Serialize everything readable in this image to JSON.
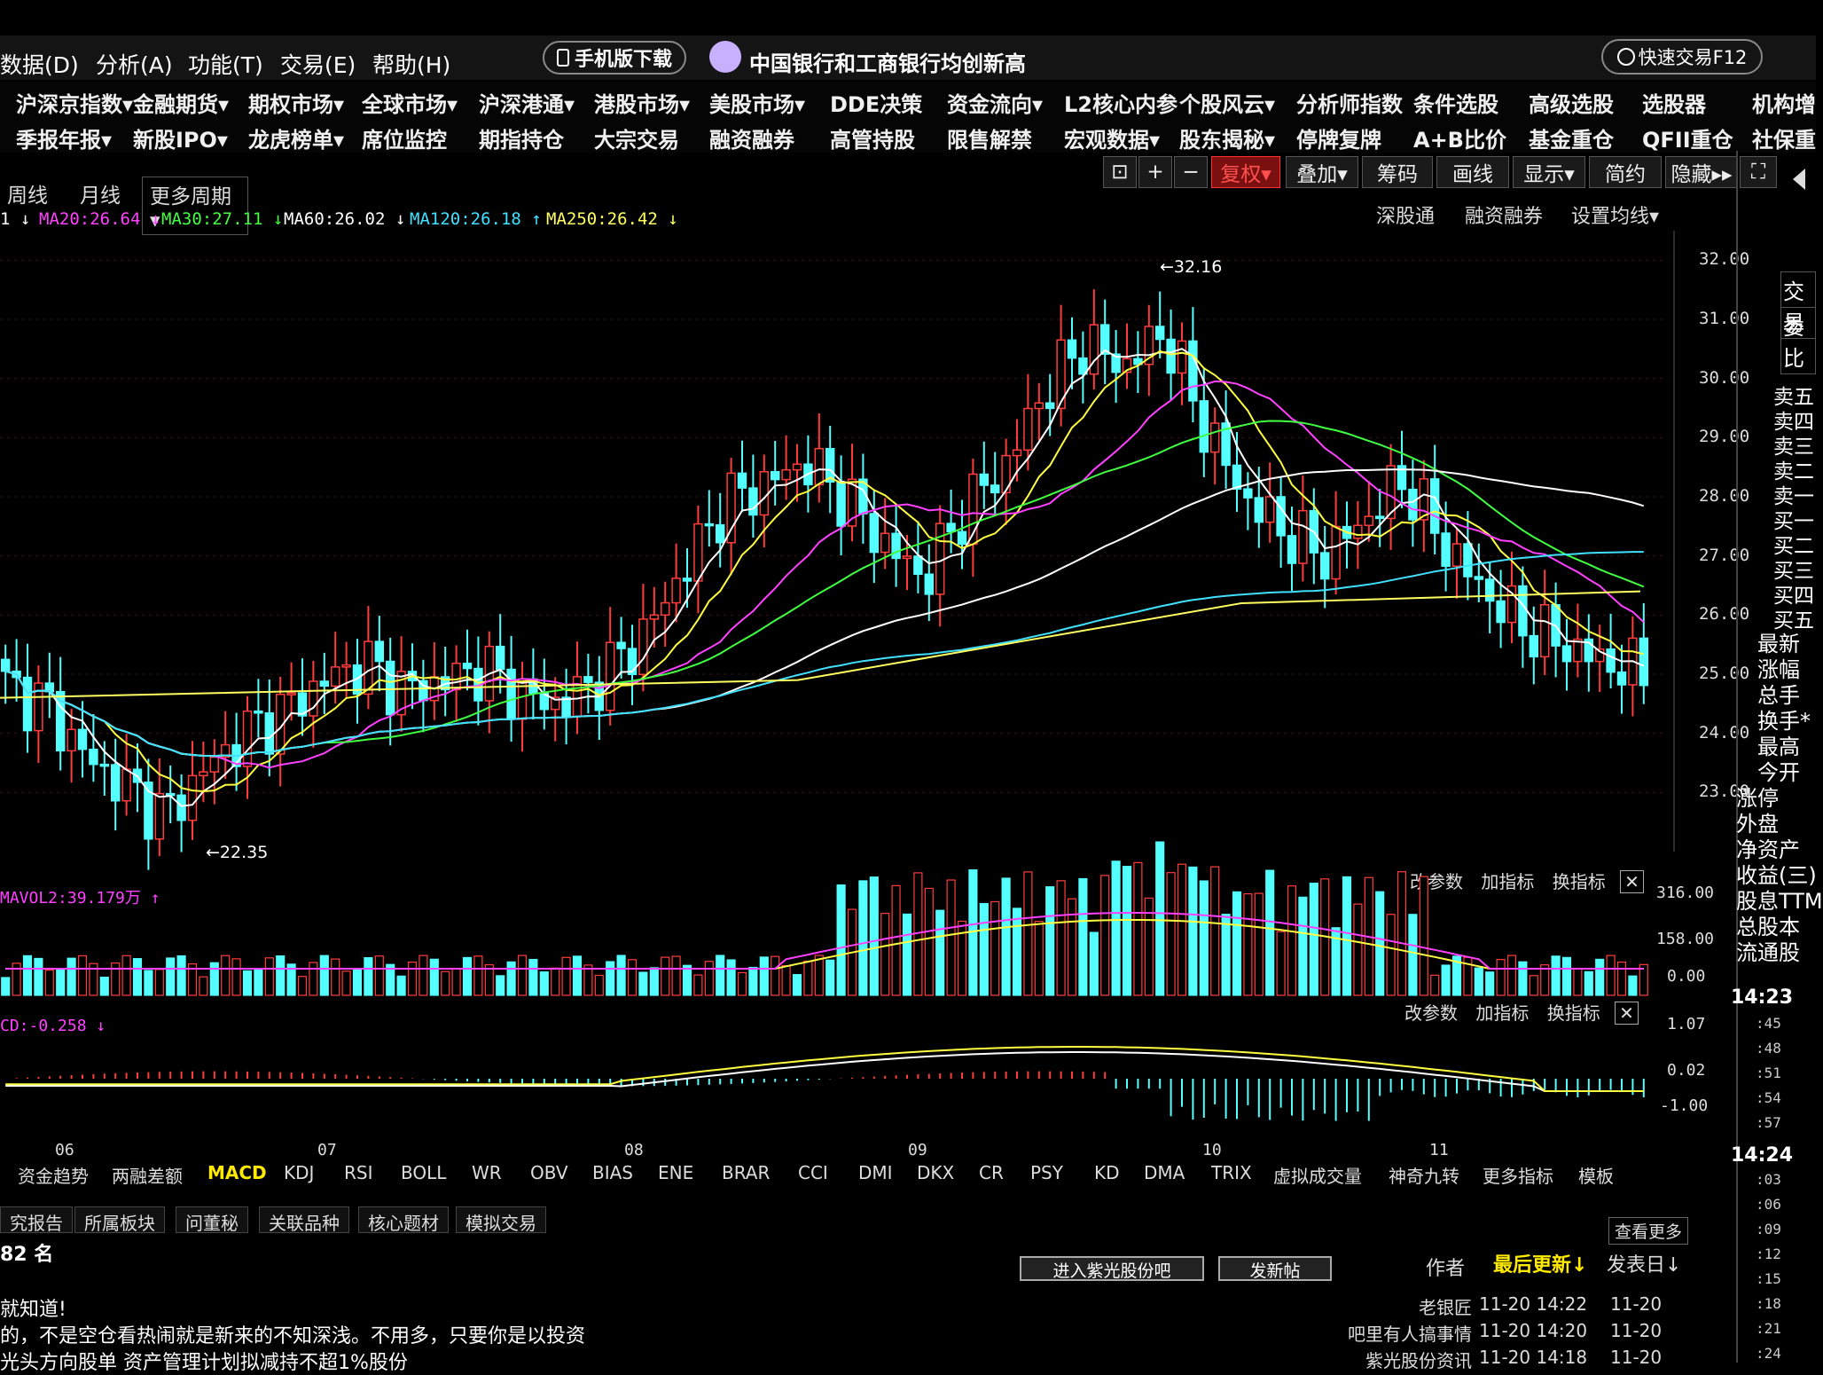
{
  "menu": [
    "数据(D)",
    "分析(A)",
    "功能(T)",
    "交易(E)",
    "帮助(H)"
  ],
  "mobile_download": "手机版下载",
  "news_ticker": "中国银行和工商银行均创新高",
  "quick_trade": "快速交易F12",
  "nav_row1": [
    "沪深京指数▾",
    "金融期货▾",
    "期权市场▾",
    "全球市场▾",
    "沪深港通▾",
    "港股市场▾",
    "美股市场▾",
    "DDE决策",
    "资金流向▾",
    "L2核心内参",
    "个股风云▾",
    "分析师指数",
    "条件选股",
    "高级选股",
    "选股器",
    "机构增"
  ],
  "nav_row2": [
    "季报年报▾",
    "新股IPO▾",
    "龙虎榜单▾",
    "席位监控",
    "期指持仓",
    "大宗交易",
    "融资融券",
    "高管持股",
    "限售解禁",
    "宏观数据▾",
    "股东揭秘▾",
    "停牌复牌",
    "A+B比价",
    "基金重仓",
    "QFII重仓",
    "社保重"
  ],
  "period_tabs": [
    "周线",
    "月线",
    "更多周期▾"
  ],
  "toolbar": {
    "lock": "⊡",
    "plus": "+",
    "minus": "−",
    "fuquan": "复权▾",
    "overlay": "叠加▾",
    "chips": "筹码",
    "draw": "画线",
    "display": "显示▾",
    "simple": "简约",
    "hide": "隐藏▸▸",
    "fullscreen": "⛶"
  },
  "ma_labels": [
    {
      "text": "1 ↓",
      "color": "#ffffff"
    },
    {
      "text": "MA20:26.64 ↓",
      "color": "#ff40ff"
    },
    {
      "text": "MA30:27.11 ↓",
      "color": "#40ff40"
    },
    {
      "text": "MA60:26.02 ↓",
      "color": "#ffffff"
    },
    {
      "text": "MA120:26.18 ↑",
      "color": "#40e0ff"
    },
    {
      "text": "MA250:26.42 ↓",
      "color": "#ffff60"
    }
  ],
  "chart_links": [
    "深股通",
    "融资融券",
    "设置均线▾"
  ],
  "right_side_tabs": [
    "交易",
    "委比"
  ],
  "order_book": [
    "卖五",
    "卖四",
    "卖三",
    "卖二",
    "卖一",
    "买一",
    "买二",
    "买三",
    "买四",
    "买五"
  ],
  "quote_fields": [
    "最新",
    "涨幅",
    "总手",
    "换手*",
    "最高",
    "今开",
    "涨停",
    "外盘",
    "净资产",
    "收益(三)",
    "股息TTM",
    "总股本",
    "流通股"
  ],
  "time_label_1": "14:23",
  "time_ticks_1": [
    ":45",
    ":48",
    ":51",
    ":54",
    ":57"
  ],
  "time_label_2": "14:24",
  "time_ticks_2": [
    ":03",
    ":06",
    ":09",
    ":12",
    ":15",
    ":18",
    ":21",
    ":24"
  ],
  "price_axis": [
    "32.00",
    "31.00",
    "30.00",
    "29.00",
    "28.00",
    "27.00",
    "26.00",
    "25.00",
    "24.00",
    "23.00"
  ],
  "high_label": "32.16",
  "low_label": "22.35",
  "volume_header": "MAVOL2:39.179万 ↑",
  "volume_axis": [
    "316.00",
    "158.00",
    "0.00"
  ],
  "panel_controls": [
    "改参数",
    "加指标",
    "换指标",
    "✕"
  ],
  "macd_header": "CD:-0.258 ↓",
  "macd_axis": [
    "1.07",
    "0.02",
    "-1.00"
  ],
  "months": [
    "06",
    "07",
    "08",
    "09",
    "10",
    "11"
  ],
  "indicator_tabs": [
    "资金趋势",
    "两融差额",
    "MACD",
    "KDJ",
    "RSI",
    "BOLL",
    "WR",
    "OBV",
    "BIAS",
    "ENE",
    "BRAR",
    "CCI",
    "DMI",
    "DKX",
    "CR",
    "PSY",
    "KD",
    "DMA",
    "TRIX",
    "虚拟成交量",
    "神奇九转",
    "更多指标",
    "模板"
  ],
  "bottom_tabs": [
    "究报告",
    "所属板块",
    "问董秘",
    "关联品种",
    "核心题材",
    "模拟交易"
  ],
  "see_more": "查看更多",
  "rank_text": "82 名",
  "forum_buttons": [
    "进入紫光股份吧",
    "发新帖"
  ],
  "forum_headers": {
    "author": "作者",
    "last_update": "最后更新↓",
    "post_date": "发表日↓"
  },
  "posts": [
    {
      "title": "就知道!",
      "author": "老银匠",
      "updated": "11-20 14:22",
      "date": "11-20"
    },
    {
      "title": "的，不是空仓看热闹就是新来的不知深浅。不用多，只要你是以投资",
      "author": "吧里有人搞事情",
      "updated": "11-20 14:20",
      "date": "11-20"
    },
    {
      "title": "光头方向股单 资产管理计划拟减持不超1%股份",
      "author": "紫光股份资讯",
      "updated": "11-20 14:18",
      "date": "11-20"
    }
  ],
  "colors": {
    "up": "#ff3c3c",
    "down": "#54ffff",
    "ma5": "#ffffff",
    "ma10": "#ffff40",
    "ma20": "#ff40ff",
    "ma30": "#40ff40",
    "ma60": "#ffffff",
    "ma120": "#40e0ff",
    "ma250": "#ffff60"
  },
  "chart_data": {
    "type": "line",
    "title": "",
    "x_months": [
      "06",
      "07",
      "08",
      "09",
      "10",
      "11"
    ],
    "ylim": [
      22.0,
      32.5
    ],
    "high": 32.16,
    "low": 22.35,
    "series": [
      {
        "name": "MA20",
        "last": 26.64
      },
      {
        "name": "MA30",
        "last": 27.11
      },
      {
        "name": "MA60",
        "last": 26.02
      },
      {
        "name": "MA120",
        "last": 26.18
      },
      {
        "name": "MA250",
        "last": 26.42
      }
    ],
    "close_path": [
      24.8,
      24.5,
      23.6,
      23.1,
      22.6,
      23.4,
      24.0,
      24.4,
      24.9,
      25.2,
      24.7,
      24.9,
      25.1,
      24.6,
      24.5,
      25.0,
      25.7,
      26.8,
      27.9,
      28.2,
      28.6,
      28.0,
      27.2,
      26.6,
      27.8,
      28.5,
      29.8,
      30.6,
      30.2,
      30.8,
      29.2,
      28.0,
      27.4,
      27.0,
      27.6,
      28.3,
      27.2,
      26.4,
      25.8,
      25.5,
      25.2,
      25.0
    ],
    "volume_axis": [
      0,
      158,
      316
    ],
    "macd_axis": [
      -1.0,
      0.02,
      1.07
    ]
  }
}
